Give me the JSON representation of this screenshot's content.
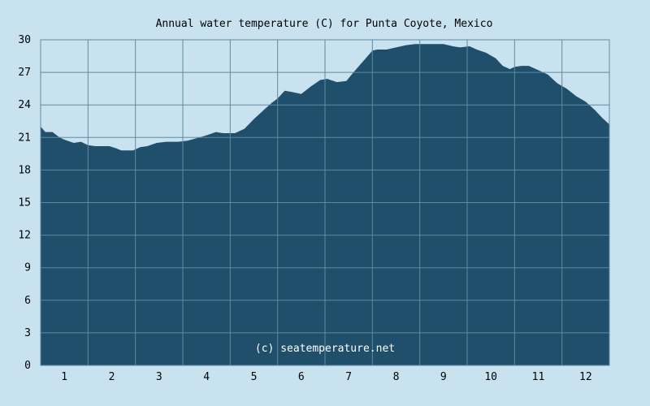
{
  "chart_data": {
    "type": "area",
    "title": "Annual water temperature (C) for Punta Coyote, Mexico",
    "xlabel": "",
    "ylabel": "",
    "x_ticks": [
      "1",
      "2",
      "3",
      "4",
      "5",
      "6",
      "7",
      "8",
      "9",
      "10",
      "11",
      "12"
    ],
    "y_ticks": [
      0,
      3,
      6,
      9,
      12,
      15,
      18,
      21,
      24,
      27,
      30
    ],
    "ylim": [
      0,
      30
    ],
    "xlim": [
      0.5,
      12.5
    ],
    "grid": true,
    "credit": "(c) seatemperature.net",
    "colors": {
      "background": "#c9e2ef",
      "fill": "#1f4f6b",
      "grid": "#5f8aa3"
    },
    "series": [
      {
        "x": [
          0.5,
          0.6,
          0.75,
          0.9,
          1.0,
          1.2,
          1.35,
          1.5,
          1.65,
          1.8,
          1.95,
          2.1,
          2.2,
          2.35,
          2.45,
          2.6,
          2.75,
          2.95,
          3.15,
          3.4,
          3.6,
          3.85,
          4.0,
          4.2,
          4.35,
          4.6,
          4.8,
          5.0,
          5.2,
          5.38,
          5.5,
          5.65,
          5.8,
          6.0,
          6.2,
          6.4,
          6.55,
          6.75,
          6.95,
          7.1,
          7.3,
          7.5,
          7.6,
          7.8,
          8.0,
          8.2,
          8.4,
          8.6,
          8.85,
          9.0,
          9.2,
          9.35,
          9.55,
          9.7,
          9.9,
          10.1,
          10.25,
          10.4,
          10.5,
          10.65,
          10.8,
          11.0,
          11.2,
          11.4,
          11.6,
          11.8,
          12.0,
          12.2,
          12.35,
          12.5
        ],
        "values": [
          22.0,
          21.5,
          21.5,
          21.0,
          20.8,
          20.5,
          20.6,
          20.3,
          20.2,
          20.2,
          20.2,
          20.0,
          19.8,
          19.8,
          19.8,
          20.1,
          20.2,
          20.5,
          20.6,
          20.6,
          20.7,
          21.0,
          21.2,
          21.5,
          21.4,
          21.4,
          21.8,
          22.7,
          23.5,
          24.2,
          24.6,
          25.3,
          25.2,
          25.0,
          25.7,
          26.3,
          26.4,
          26.1,
          26.2,
          27.0,
          28.0,
          29.0,
          29.1,
          29.1,
          29.3,
          29.5,
          29.6,
          29.6,
          29.6,
          29.6,
          29.4,
          29.3,
          29.4,
          29.1,
          28.8,
          28.3,
          27.6,
          27.3,
          27.5,
          27.6,
          27.6,
          27.2,
          26.8,
          26.0,
          25.5,
          24.8,
          24.3,
          23.5,
          22.8,
          22.2
        ]
      }
    ]
  }
}
